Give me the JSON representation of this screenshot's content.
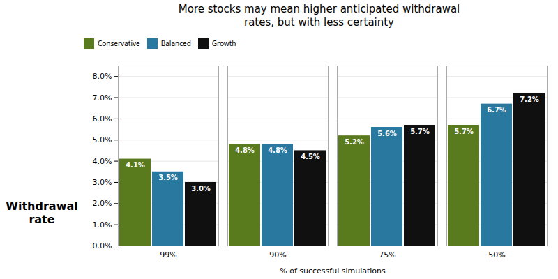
{
  "chart_data": {
    "type": "bar",
    "title": "More stocks may mean higher anticipated withdrawal\nrates, but with less certainty",
    "xlabel": "% of successful simulations",
    "ylabel": "Withdrawal\nrate",
    "categories": [
      "99%",
      "90%",
      "75%",
      "50%"
    ],
    "series": [
      {
        "name": "Conservative",
        "color": "#5a7a1e",
        "values": [
          4.1,
          4.8,
          5.2,
          5.7
        ],
        "value_labels": [
          "4.1%",
          "4.8%",
          "5.2%",
          "5.7%"
        ]
      },
      {
        "name": "Balanced",
        "color": "#2878a0",
        "values": [
          3.5,
          4.8,
          5.6,
          6.7
        ],
        "value_labels": [
          "3.5%",
          "4.8%",
          "5.6%",
          "6.7%"
        ]
      },
      {
        "name": "Growth",
        "color": "#101010",
        "values": [
          3.0,
          4.5,
          5.7,
          7.2
        ],
        "value_labels": [
          "3.0%",
          "4.5%",
          "5.7%",
          "7.2%"
        ]
      }
    ],
    "ylim": [
      0,
      8.5
    ],
    "yticks": [
      {
        "value": 0.0,
        "label": "0.0%"
      },
      {
        "value": 1.0,
        "label": "1.0%"
      },
      {
        "value": 2.0,
        "label": "2.0%"
      },
      {
        "value": 3.0,
        "label": "3.0%"
      },
      {
        "value": 4.0,
        "label": "4.0%"
      },
      {
        "value": 5.0,
        "label": "5.0%"
      },
      {
        "value": 6.0,
        "label": "6.0%"
      },
      {
        "value": 7.0,
        "label": "7.0%"
      },
      {
        "value": 8.0,
        "label": "8.0%"
      }
    ],
    "grid": true,
    "legend": "top",
    "data_labels": true
  }
}
